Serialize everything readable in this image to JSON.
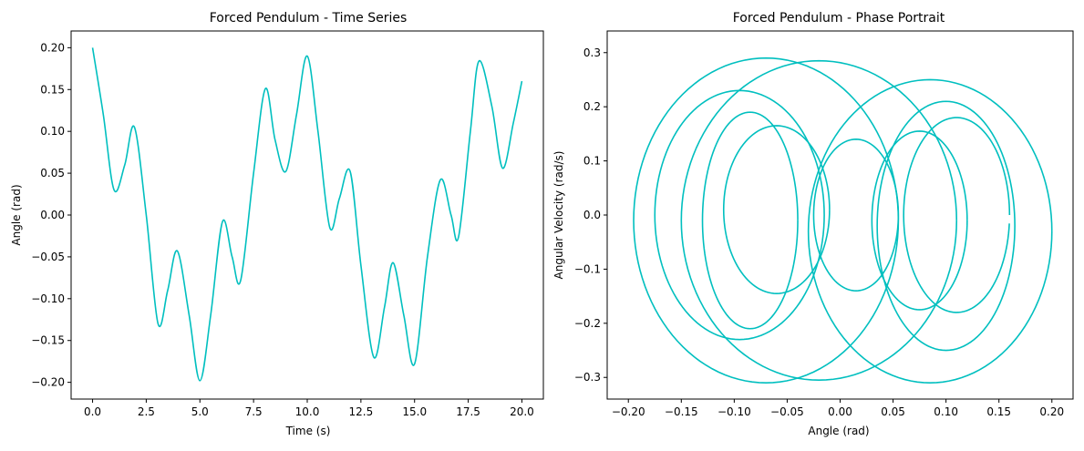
{
  "chart_data": [
    {
      "type": "line",
      "title": "Forced Pendulum - Time Series",
      "xlabel": "Time (s)",
      "ylabel": "Angle (rad)",
      "xlim": [
        -1.0,
        21.0
      ],
      "ylim": [
        -0.22,
        0.22
      ],
      "xticks": [
        0.0,
        2.5,
        5.0,
        7.5,
        10.0,
        12.5,
        15.0,
        17.5,
        20.0
      ],
      "xtick_labels": [
        "0.0",
        "2.5",
        "5.0",
        "7.5",
        "10.0",
        "12.5",
        "15.0",
        "17.5",
        "20.0"
      ],
      "yticks": [
        -0.2,
        -0.15,
        -0.1,
        -0.05,
        0.0,
        0.05,
        0.1,
        0.15,
        0.2
      ],
      "ytick_labels": [
        "−0.20",
        "−0.15",
        "−0.10",
        "−0.05",
        "0.00",
        "0.05",
        "0.10",
        "0.15",
        "0.20"
      ],
      "grid": false,
      "color": "#00bfbf",
      "series": [
        {
          "x": [
            0.0,
            0.5,
            1.0,
            1.5,
            1.95,
            2.5,
            3.05,
            3.5,
            3.95,
            4.5,
            5.0,
            5.5,
            6.05,
            6.5,
            6.9,
            7.5,
            8.05,
            8.5,
            9.0,
            9.5,
            10.0,
            10.5,
            11.05,
            11.5,
            12.0,
            12.5,
            13.1,
            13.6,
            14.0,
            14.5,
            15.0,
            15.6,
            16.2,
            16.7,
            17.05,
            17.6,
            18.0,
            18.6,
            19.1,
            19.6,
            20.0
          ],
          "y": [
            0.2,
            0.12,
            0.03,
            0.06,
            0.105,
            0.0,
            -0.13,
            -0.09,
            -0.043,
            -0.12,
            -0.198,
            -0.12,
            -0.008,
            -0.05,
            -0.078,
            0.05,
            0.151,
            0.09,
            0.052,
            0.12,
            0.19,
            0.1,
            -0.015,
            0.02,
            0.052,
            -0.06,
            -0.17,
            -0.11,
            -0.057,
            -0.12,
            -0.178,
            -0.05,
            0.042,
            0.0,
            -0.026,
            0.1,
            0.184,
            0.13,
            0.056,
            0.11,
            0.16
          ]
        }
      ]
    },
    {
      "type": "line",
      "title": "Forced Pendulum - Phase Portrait",
      "xlabel": "Angle (rad)",
      "ylabel": "Angular Velocity (rad/s)",
      "xlim": [
        -0.22,
        0.22
      ],
      "ylim": [
        -0.34,
        0.34
      ],
      "xticks": [
        -0.2,
        -0.15,
        -0.1,
        -0.05,
        0.0,
        0.05,
        0.1,
        0.15,
        0.2
      ],
      "xtick_labels": [
        "−0.20",
        "−0.15",
        "−0.10",
        "−0.05",
        "0.00",
        "0.05",
        "0.10",
        "0.15",
        "0.20"
      ],
      "yticks": [
        -0.3,
        -0.2,
        -0.1,
        0.0,
        0.1,
        0.2,
        0.3
      ],
      "ytick_labels": [
        "−0.3",
        "−0.2",
        "−0.1",
        "0.0",
        "0.1",
        "0.2",
        "0.3"
      ],
      "grid": false,
      "color": "#00bfbf",
      "loops": [
        {
          "cx": 0.085,
          "cy": -0.03,
          "rx": 0.115,
          "ry": 0.28,
          "start_deg": 0,
          "sweep_deg": 360
        },
        {
          "cx": -0.07,
          "cy": -0.01,
          "rx": 0.125,
          "ry": 0.3,
          "start_deg": 0,
          "sweep_deg": 360
        },
        {
          "cx": -0.02,
          "cy": -0.01,
          "rx": 0.13,
          "ry": 0.295,
          "start_deg": 0,
          "sweep_deg": 360
        },
        {
          "cx": 0.1,
          "cy": -0.02,
          "rx": 0.065,
          "ry": 0.23,
          "start_deg": 0,
          "sweep_deg": 360
        },
        {
          "cx": -0.095,
          "cy": 0.0,
          "rx": 0.08,
          "ry": 0.23,
          "start_deg": 0,
          "sweep_deg": 360
        },
        {
          "cx": -0.085,
          "cy": -0.01,
          "rx": 0.045,
          "ry": 0.2,
          "start_deg": 0,
          "sweep_deg": 360
        },
        {
          "cx": 0.015,
          "cy": 0.0,
          "rx": 0.04,
          "ry": 0.14,
          "start_deg": 0,
          "sweep_deg": 360
        },
        {
          "cx": -0.06,
          "cy": 0.01,
          "rx": 0.05,
          "ry": 0.155,
          "start_deg": 0,
          "sweep_deg": 360
        },
        {
          "cx": 0.075,
          "cy": -0.01,
          "rx": 0.045,
          "ry": 0.165,
          "start_deg": 0,
          "sweep_deg": 360
        },
        {
          "cx": 0.11,
          "cy": 0.0,
          "rx": 0.05,
          "ry": 0.18,
          "start_deg": 0,
          "sweep_deg": 355
        }
      ]
    }
  ]
}
